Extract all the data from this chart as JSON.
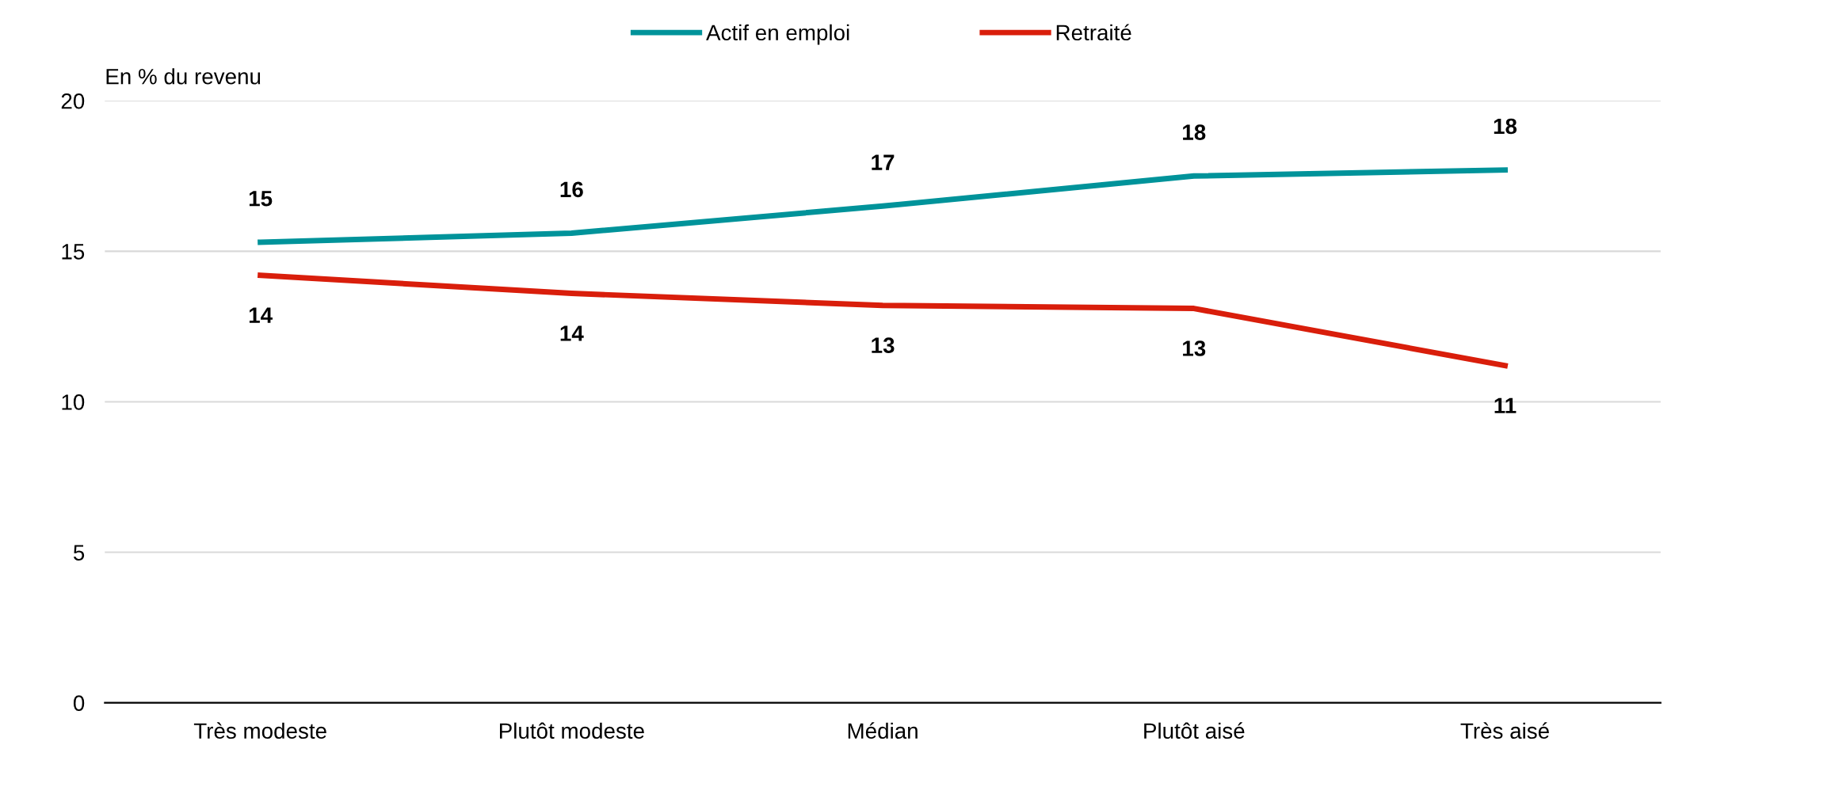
{
  "chart_data": {
    "type": "line",
    "ylabel": "En % du revenu",
    "categories": [
      "Très modeste",
      "Plutôt modeste",
      "Médian",
      "Plutôt aisé",
      "Très aisé"
    ],
    "series": [
      {
        "name": "Actif en emploi",
        "color": "#00939a",
        "values": [
          15.3,
          15.6,
          16.5,
          17.5,
          17.7
        ],
        "value_labels": [
          "15",
          "16",
          "17",
          "18",
          "18"
        ]
      },
      {
        "name": "Retraité",
        "color": "#d91e0b",
        "values": [
          14.2,
          13.6,
          13.2,
          13.1,
          11.2
        ],
        "value_labels": [
          "14",
          "14",
          "13",
          "13",
          "11"
        ]
      }
    ],
    "ylim": [
      0,
      20
    ],
    "yticks": [
      0,
      5,
      10,
      15,
      20
    ],
    "grid": "y",
    "legend": "top",
    "marker": "none",
    "line_style": "solid"
  }
}
